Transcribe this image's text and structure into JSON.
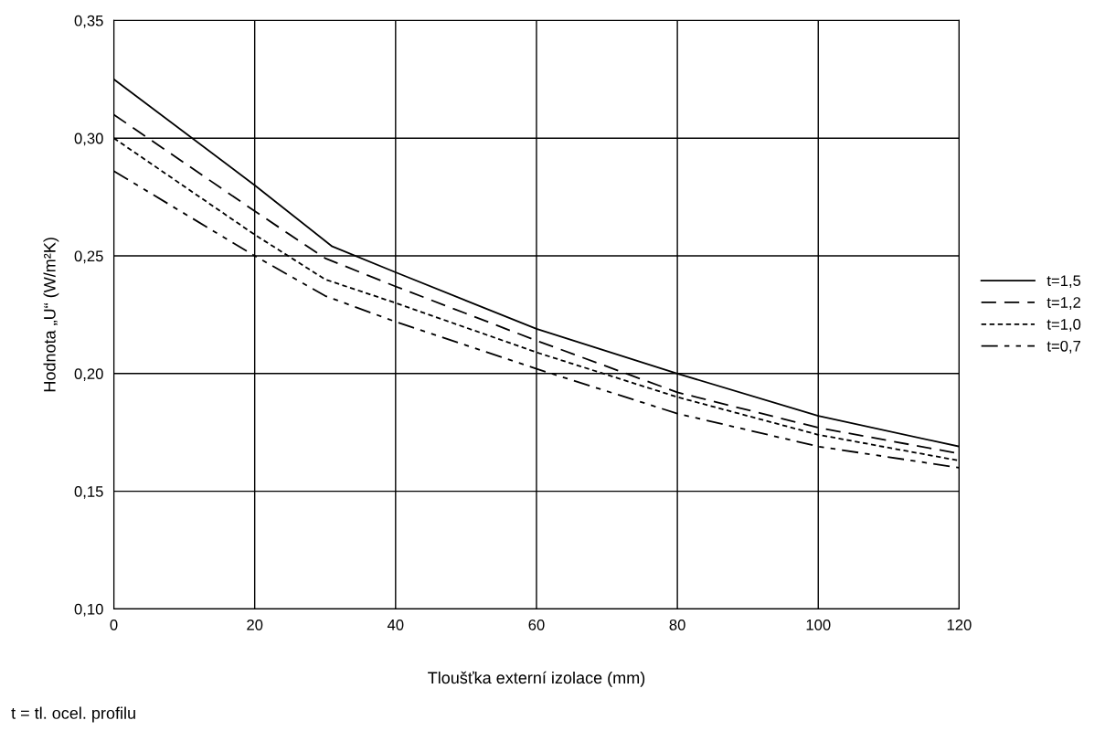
{
  "chart_data": {
    "type": "line",
    "xlabel": "Tloušťka externí izolace (mm)",
    "ylabel": "Hodnota „U“ (W/m²K)",
    "annotations": [
      "t = tl. ocel. profilu"
    ],
    "xlim": [
      0,
      120
    ],
    "xticks": [
      0,
      20,
      40,
      60,
      80,
      100,
      120
    ],
    "ylim": [
      0.1,
      0.35
    ],
    "yticks": [
      {
        "value": 0.1,
        "label": "0,10"
      },
      {
        "value": 0.15,
        "label": "0,15"
      },
      {
        "value": 0.2,
        "label": "0,20"
      },
      {
        "value": 0.25,
        "label": "0,25"
      },
      {
        "value": 0.3,
        "label": "0,30"
      },
      {
        "value": 0.35,
        "label": "0,35"
      }
    ],
    "grid": true,
    "legend": "right",
    "marker": "none",
    "series": [
      {
        "name": "t=1,5",
        "color": "#000000",
        "line_style": "solid",
        "x": [
          0,
          20,
          31,
          40,
          60,
          80,
          100,
          120
        ],
        "values": [
          0.325,
          0.28,
          0.254,
          0.243,
          0.219,
          0.2,
          0.182,
          0.169
        ]
      },
      {
        "name": "t=1,2",
        "color": "#000000",
        "line_style": "dashed",
        "x": [
          0,
          20,
          30,
          40,
          60,
          80,
          100,
          120
        ],
        "values": [
          0.31,
          0.269,
          0.249,
          0.237,
          0.214,
          0.192,
          0.177,
          0.166
        ]
      },
      {
        "name": "t=1,0",
        "color": "#000000",
        "line_style": "dotted",
        "x": [
          0,
          20,
          30,
          40,
          60,
          80,
          100,
          120
        ],
        "values": [
          0.3,
          0.259,
          0.24,
          0.23,
          0.209,
          0.19,
          0.174,
          0.163
        ]
      },
      {
        "name": "t=0,7",
        "color": "#000000",
        "line_style": "dashdot",
        "x": [
          0,
          20,
          30,
          40,
          60,
          80,
          100,
          120
        ],
        "values": [
          0.286,
          0.25,
          0.233,
          0.222,
          0.202,
          0.183,
          0.169,
          0.16
        ]
      }
    ]
  }
}
